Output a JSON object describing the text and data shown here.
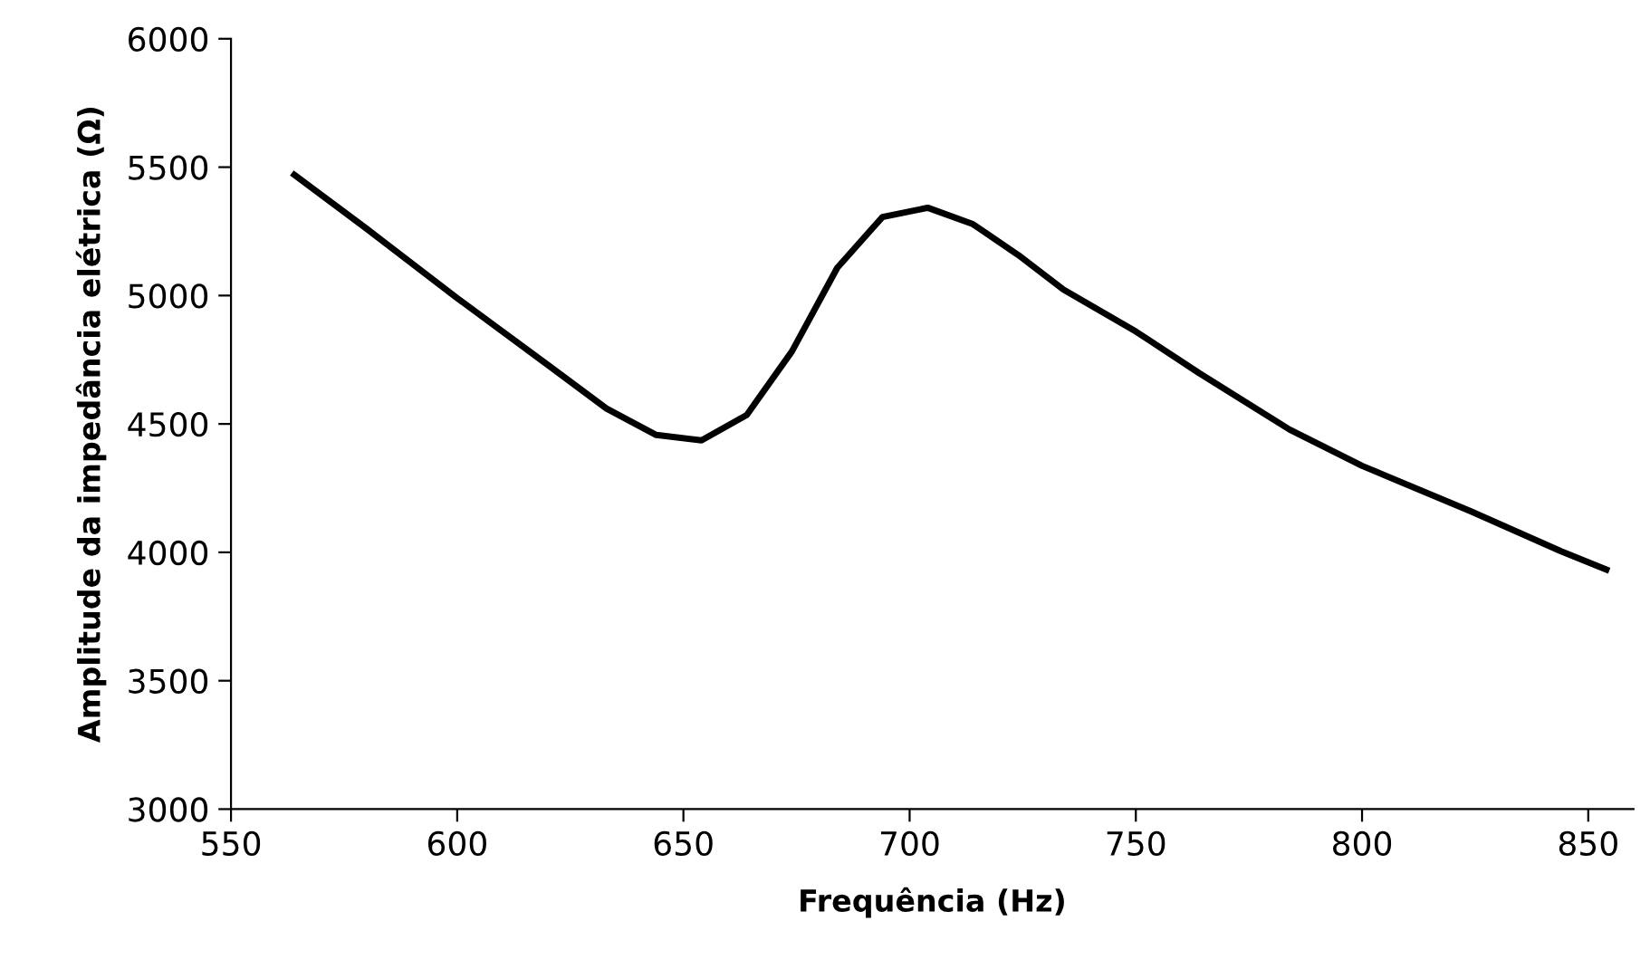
{
  "chart_data": {
    "type": "line",
    "xlabel": "Frequência (Hz)",
    "ylabel": "Amplitude da impedância elétrica (Ω)",
    "xlim": [
      550,
      860
    ],
    "xticks": [
      550,
      600,
      650,
      700,
      750,
      800,
      850
    ],
    "ylim": [
      3000,
      6000
    ],
    "yticks": [
      3000,
      3500,
      4000,
      4500,
      5000,
      5500,
      6000
    ],
    "grid": false,
    "legend": false,
    "marker": "none",
    "line_style": "solid",
    "series": [
      {
        "color": "#000000",
        "x": [
          564,
          580,
          600,
          620,
          633,
          644,
          654,
          664,
          674,
          684,
          694,
          704,
          714,
          724,
          734,
          750,
          764,
          784,
          800,
          824,
          844,
          854
        ],
        "values": [
          5470,
          5260,
          4990,
          4730,
          4560,
          4457,
          4436,
          4535,
          4783,
          5108,
          5306,
          5342,
          5278,
          5158,
          5023,
          4860,
          4698,
          4478,
          4337,
          4160,
          4004,
          3933
        ]
      }
    ]
  }
}
